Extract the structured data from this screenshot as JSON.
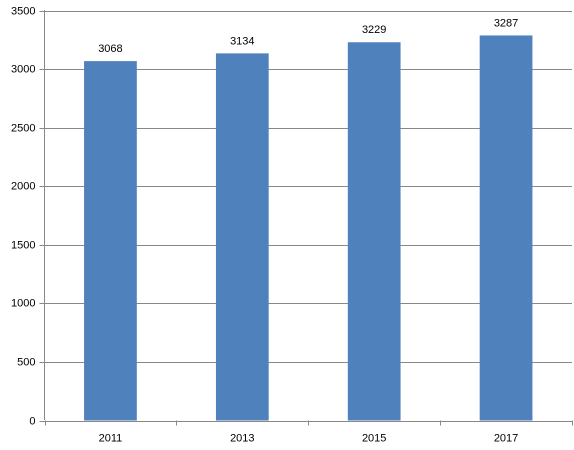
{
  "chart_data": {
    "type": "bar",
    "categories": [
      "2011",
      "2013",
      "2015",
      "2017"
    ],
    "values": [
      3068,
      3134,
      3229,
      3287
    ],
    "color": "#4f81bd",
    "ylim": [
      0,
      3500
    ],
    "yticks": [
      0,
      500,
      1000,
      1500,
      2000,
      2500,
      3000,
      3500
    ],
    "grid": true
  }
}
